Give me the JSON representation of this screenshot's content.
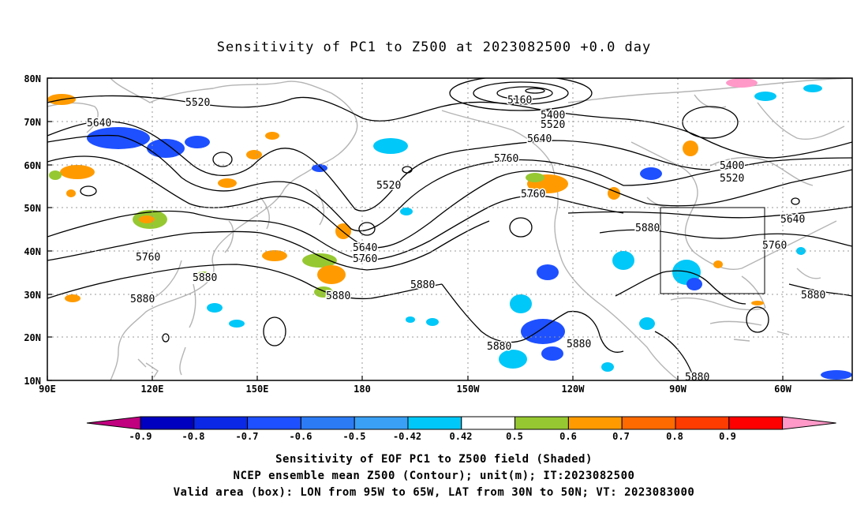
{
  "title": "Sensitivity of PC1 to Z500 at 2023082500 +0.0 day",
  "lat_labels": [
    "80N",
    "70N",
    "60N",
    "50N",
    "40N",
    "30N",
    "20N",
    "10N"
  ],
  "lon_labels": [
    "90E",
    "120E",
    "150E",
    "180",
    "150W",
    "120W",
    "90W",
    "60W"
  ],
  "contour_labels": [
    {
      "text": "5520"
    },
    {
      "text": "5640"
    },
    {
      "text": "5160"
    },
    {
      "text": "5400"
    },
    {
      "text": "5520"
    },
    {
      "text": "5640"
    },
    {
      "text": "5760"
    },
    {
      "text": "5520"
    },
    {
      "text": "5760"
    },
    {
      "text": "5400"
    },
    {
      "text": "5520"
    },
    {
      "text": "5640"
    },
    {
      "text": "5760"
    },
    {
      "text": "5640"
    },
    {
      "text": "5760"
    },
    {
      "text": "5880"
    },
    {
      "text": "5880"
    },
    {
      "text": "5880"
    },
    {
      "text": "5880"
    },
    {
      "text": "5880"
    },
    {
      "text": "5880"
    },
    {
      "text": "5880"
    },
    {
      "text": "5880"
    },
    {
      "text": "5880"
    },
    {
      "text": "5760"
    }
  ],
  "colorbar": {
    "tick_labels": [
      "-0.9",
      "-0.8",
      "-0.7",
      "-0.6",
      "-0.5",
      "-0.42",
      "0.42",
      "0.5",
      "0.6",
      "0.7",
      "0.8",
      "0.9"
    ],
    "colors": [
      "#c0007f",
      "#0000c0",
      "#0a28e6",
      "#1e50ff",
      "#2c7bf5",
      "#39a0f5",
      "#00c8f8",
      "#ffffff",
      "#96c832",
      "#ff9b00",
      "#ff6a00",
      "#ff3c00",
      "#ff0000",
      "#ff99c8"
    ]
  },
  "shading_colors": {
    "blue": "#1e50ff",
    "lightblue": "#00c8f8",
    "green": "#96c832",
    "orange": "#ff9b00",
    "red": "#ff3c00"
  },
  "caption": [
    "Sensitivity of EOF PC1 to Z500 field (Shaded)",
    "NCEP ensemble mean Z500 (Contour); unit(m); IT:2023082500",
    "Valid area (box): LON from 95W to 65W, LAT from 30N to 50N; VT: 2023083000"
  ]
}
